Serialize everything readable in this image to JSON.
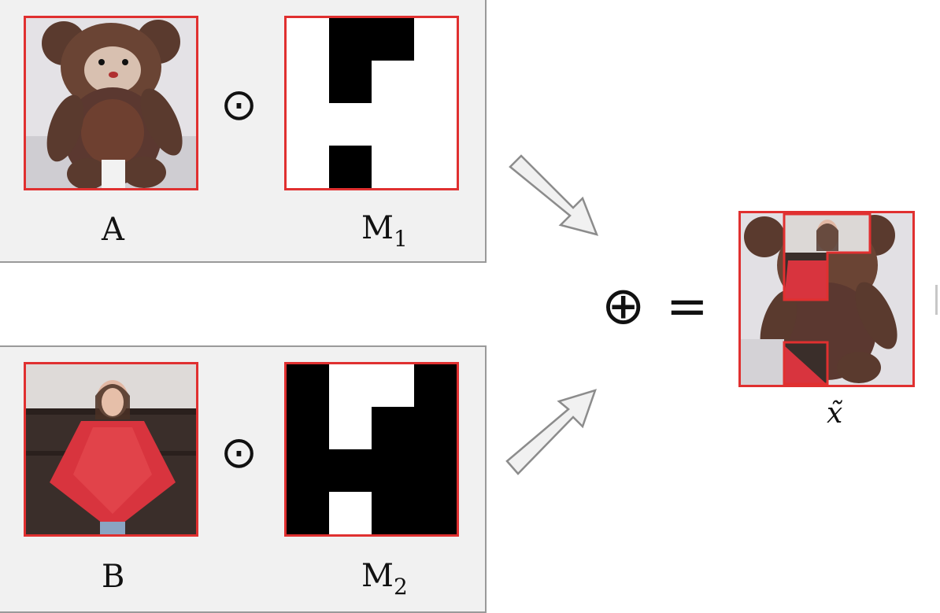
{
  "operators": {
    "elementwise_top": "⊙",
    "elementwise_bottom": "⊙",
    "oplus": "⊕",
    "equals": "="
  },
  "labels": {
    "image_a": "A",
    "mask_1_base": "M",
    "mask_1_sub": "1",
    "image_b": "B",
    "mask_2_base": "M",
    "mask_2_sub": "2",
    "result": "x̃"
  },
  "colors": {
    "border": "#e03030",
    "panel_bg": "#f1f1f1",
    "mask_black": "#000000",
    "mask_white": "#ffffff"
  }
}
